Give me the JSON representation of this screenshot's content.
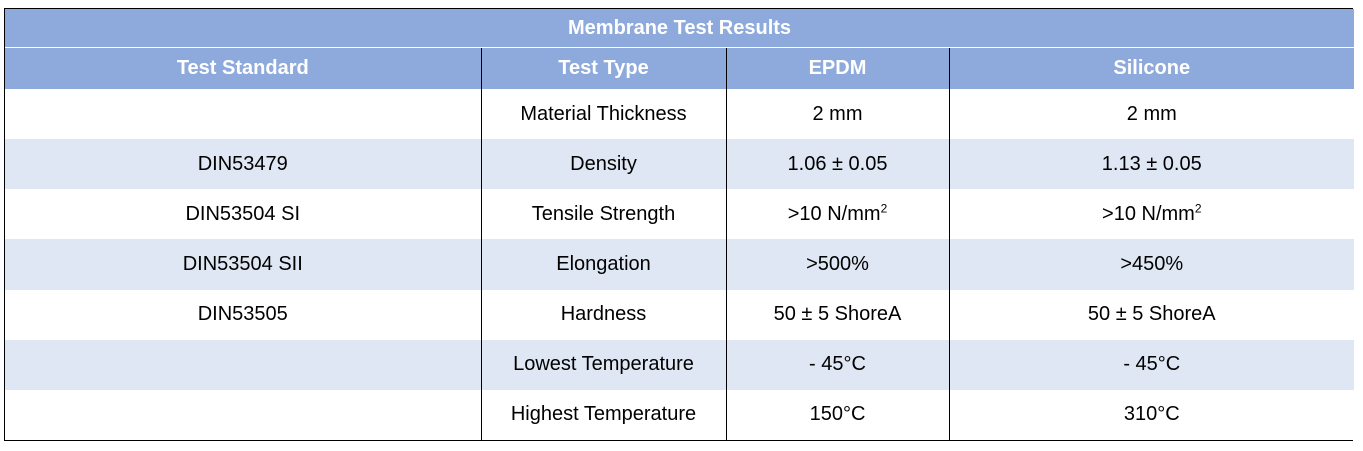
{
  "table": {
    "title": "Membrane Test Results",
    "headers": [
      "Test Standard",
      "Test Type",
      "EPDM",
      "Silicone"
    ],
    "rows": [
      {
        "standard": "",
        "type": "Material Thickness",
        "epdm": "2 mm",
        "silicone": "2 mm"
      },
      {
        "standard": "DIN53479",
        "type": "Density",
        "epdm": "1.06 ± 0.05",
        "silicone": "1.13 ± 0.05"
      },
      {
        "standard": "DIN53504 SI",
        "type": "Tensile Strength",
        "epdm": ">10 N/mm",
        "epdm_sup": "2",
        "silicone": ">10 N/mm",
        "silicone_sup": "2"
      },
      {
        "standard": "DIN53504 SII",
        "type": "Elongation",
        "epdm": ">500%",
        "silicone": ">450%"
      },
      {
        "standard": "DIN53505",
        "type": "Hardness",
        "epdm": "50 ± 5 ShoreA",
        "silicone": "50 ± 5 ShoreA"
      },
      {
        "standard": "",
        "type": "Lowest Temperature",
        "epdm": "- 45°C",
        "silicone": "- 45°C"
      },
      {
        "standard": "",
        "type": "Highest Temperature",
        "epdm": "150°C",
        "silicone": "310°C"
      }
    ]
  }
}
